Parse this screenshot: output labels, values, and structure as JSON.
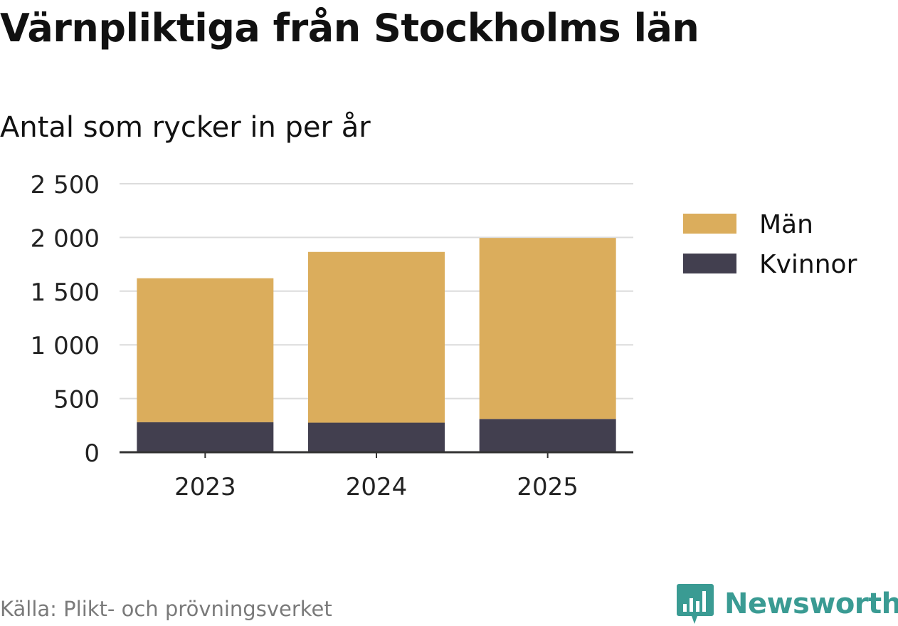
{
  "title": "Värnpliktiga från Stockholms län",
  "subtitle": "Antal som rycker in per år",
  "source": "Källa: Plikt- och prövningsverket",
  "brand": {
    "name": "Newsworthy",
    "icon": "bar-chart-speech-icon",
    "color": "#3a9b93"
  },
  "chart_data": {
    "type": "bar",
    "stacked": true,
    "categories": [
      "2023",
      "2024",
      "2025"
    ],
    "series": [
      {
        "name": "Kvinnor",
        "values": [
          280,
          275,
          310
        ],
        "color": "#423f4f"
      },
      {
        "name": "Män",
        "values": [
          1340,
          1590,
          1685
        ],
        "color": "#dbad5c"
      }
    ],
    "legend": {
      "placement": "right",
      "order": [
        "Män",
        "Kvinnor"
      ]
    },
    "ylim": [
      0,
      2500
    ],
    "yticks": [
      0,
      500,
      1000,
      1500,
      2000,
      2500
    ],
    "ytick_labels": [
      "0",
      "500",
      "1 000",
      "1 500",
      "2 000",
      "2 500"
    ],
    "grid": true,
    "xlabel": "",
    "ylabel": ""
  }
}
